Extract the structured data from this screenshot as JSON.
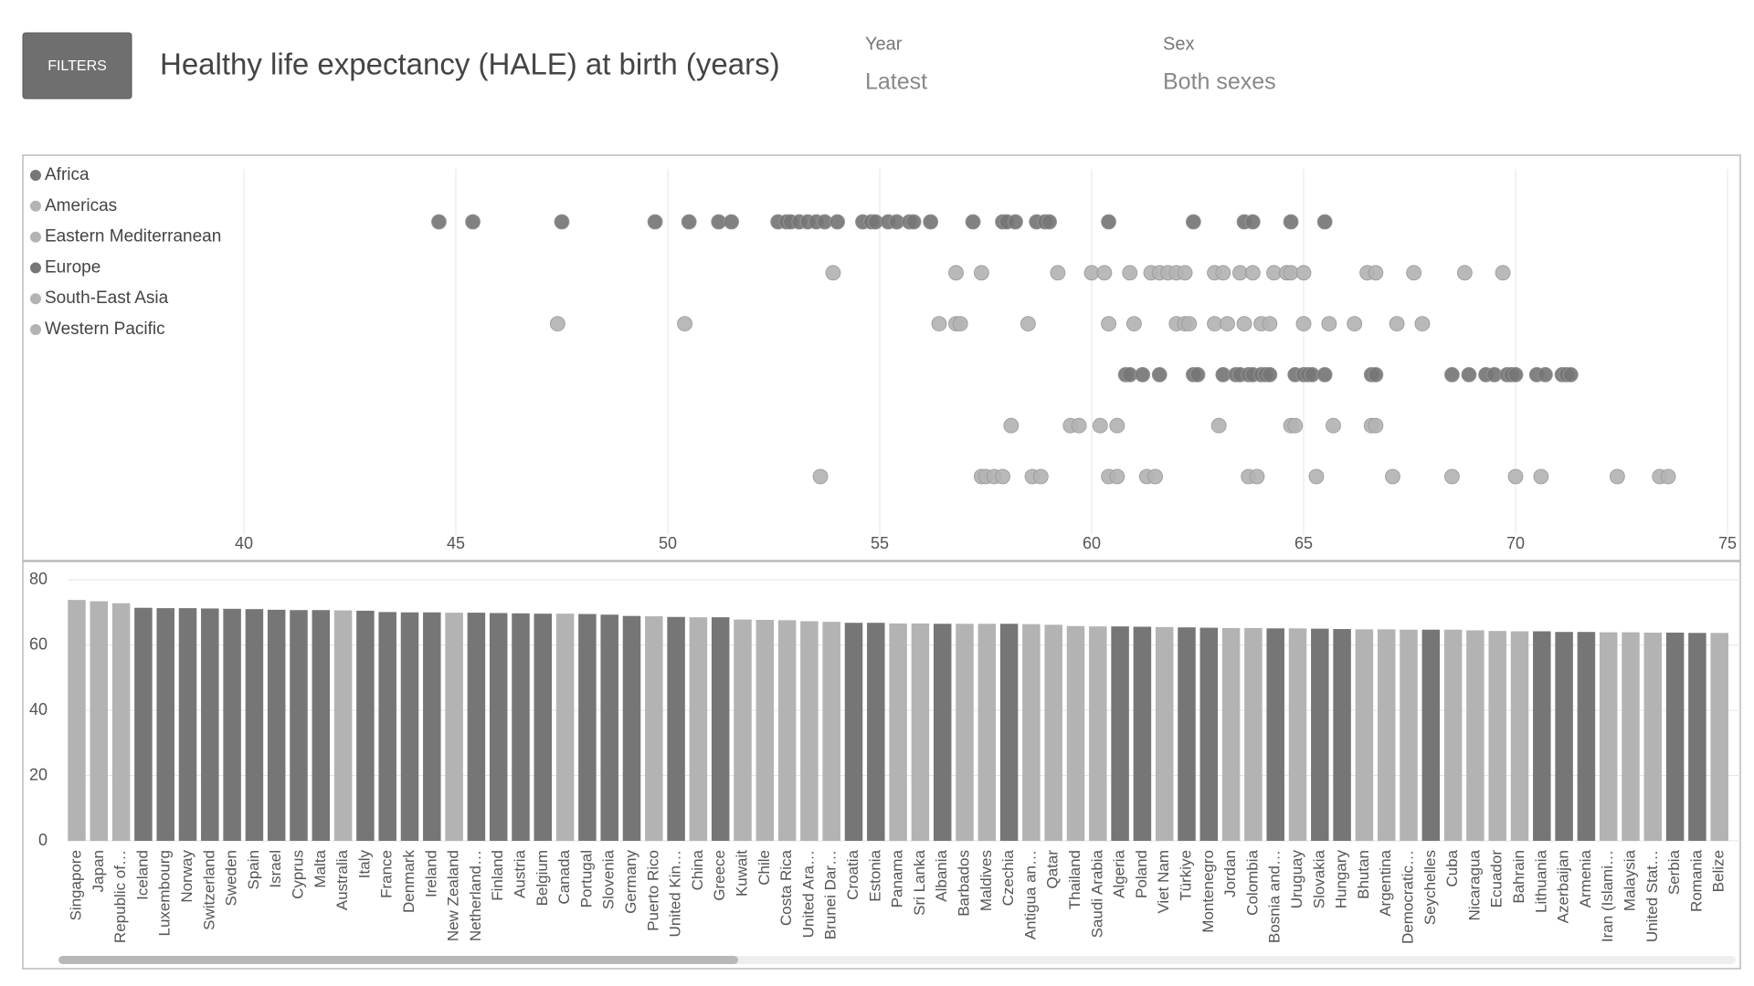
{
  "header": {
    "button": "FILTERS",
    "title": "Healthy life expectancy (HALE) at birth (years)",
    "filters": [
      {
        "label": "Year",
        "value": "Latest"
      },
      {
        "label": "Sex",
        "value": "Both sexes"
      }
    ]
  },
  "chart_data": [
    {
      "type": "strip",
      "xlim": [
        40,
        75
      ],
      "xticks": [
        40,
        45,
        50,
        55,
        60,
        65,
        70,
        75
      ],
      "grid": true,
      "legend": "left",
      "series": [
        {
          "name": "Africa",
          "color": "#767676",
          "values": [
            44.6,
            45.4,
            47.5,
            49.7,
            50.5,
            51.2,
            51.5,
            52.6,
            52.8,
            52.9,
            53.1,
            53.3,
            53.5,
            53.7,
            54.0,
            54.6,
            54.8,
            54.9,
            55.2,
            55.4,
            55.7,
            55.8,
            56.2,
            57.2,
            57.9,
            58.0,
            58.2,
            58.7,
            58.9,
            59.0,
            60.4,
            62.4,
            63.6,
            63.8,
            64.7,
            65.5
          ]
        },
        {
          "name": "Americas",
          "color": "#b3b3b3",
          "values": [
            53.9,
            56.8,
            57.4,
            59.2,
            60.0,
            60.3,
            60.9,
            61.4,
            61.6,
            61.8,
            62.0,
            62.2,
            62.9,
            63.1,
            63.5,
            63.8,
            64.3,
            64.6,
            64.7,
            65.0,
            66.5,
            66.7,
            67.6,
            68.8,
            69.7
          ]
        },
        {
          "name": "Eastern Mediterranean",
          "color": "#b3b3b3",
          "values": [
            47.4,
            50.4,
            56.4,
            56.8,
            56.9,
            58.5,
            60.4,
            61.0,
            62.0,
            62.2,
            62.3,
            62.9,
            63.2,
            63.6,
            64.0,
            64.2,
            65.0,
            65.6,
            66.2,
            67.2,
            67.8
          ]
        },
        {
          "name": "Europe",
          "color": "#767676",
          "values": [
            60.8,
            60.9,
            61.2,
            61.6,
            62.4,
            62.5,
            63.1,
            63.4,
            63.5,
            63.7,
            63.8,
            64.0,
            64.1,
            64.2,
            64.8,
            65.0,
            65.1,
            65.2,
            65.5,
            66.6,
            66.7,
            68.5,
            68.9,
            69.3,
            69.5,
            69.8,
            69.9,
            70.0,
            70.5,
            70.7,
            71.1,
            71.2,
            71.3
          ]
        },
        {
          "name": "South-East Asia",
          "color": "#b3b3b3",
          "values": [
            58.1,
            59.5,
            59.7,
            60.2,
            60.6,
            63.0,
            64.7,
            64.8,
            65.7,
            66.6,
            66.7
          ]
        },
        {
          "name": "Western Pacific",
          "color": "#b3b3b3",
          "values": [
            53.6,
            57.4,
            57.5,
            57.7,
            57.9,
            58.6,
            58.8,
            60.4,
            60.6,
            61.3,
            61.5,
            63.7,
            63.9,
            65.3,
            67.1,
            68.5,
            70.0,
            70.6,
            72.4,
            73.4,
            73.6
          ]
        }
      ]
    },
    {
      "type": "bar",
      "ylim": [
        0,
        80
      ],
      "yticks": [
        0,
        20,
        40,
        60,
        80
      ],
      "grid": true,
      "categories": [
        "Singapore",
        "Japan",
        "Republic of…",
        "Iceland",
        "Luxembourg",
        "Norway",
        "Switzerland",
        "Sweden",
        "Spain",
        "Israel",
        "Cyprus",
        "Malta",
        "Australia",
        "Italy",
        "France",
        "Denmark",
        "Ireland",
        "New Zealand",
        "Netherland…",
        "Finland",
        "Austria",
        "Belgium",
        "Canada",
        "Portugal",
        "Slovenia",
        "Germany",
        "Puerto Rico",
        "United Kin…",
        "China",
        "Greece",
        "Kuwait",
        "Chile",
        "Costa Rica",
        "United Ara…",
        "Brunei Dar…",
        "Croatia",
        "Estonia",
        "Panama",
        "Sri Lanka",
        "Albania",
        "Barbados",
        "Maldives",
        "Czechia",
        "Antigua an…",
        "Qatar",
        "Thailand",
        "Saudi Arabia",
        "Algeria",
        "Poland",
        "Viet Nam",
        "Türkiye",
        "Montenegro",
        "Jordan",
        "Colombia",
        "Bosnia and…",
        "Uruguay",
        "Slovakia",
        "Hungary",
        "Bhutan",
        "Argentina",
        "Democratic…",
        "Seychelles",
        "Cuba",
        "Nicaragua",
        "Ecuador",
        "Bahrain",
        "Lithuania",
        "Azerbaijan",
        "Armenia",
        "Iran (Islami…",
        "Malaysia",
        "United Stat…",
        "Serbia",
        "Romania",
        "Belize"
      ],
      "values": [
        73.8,
        73.4,
        72.8,
        71.4,
        71.3,
        71.3,
        71.2,
        71.1,
        71.0,
        70.8,
        70.7,
        70.7,
        70.6,
        70.5,
        70.1,
        70.0,
        70.0,
        69.9,
        69.9,
        69.8,
        69.7,
        69.6,
        69.6,
        69.5,
        69.3,
        68.9,
        68.8,
        68.6,
        68.5,
        68.5,
        67.8,
        67.7,
        67.6,
        67.3,
        67.1,
        66.8,
        66.8,
        66.6,
        66.6,
        66.5,
        66.5,
        66.5,
        66.5,
        66.4,
        66.2,
        65.8,
        65.7,
        65.7,
        65.6,
        65.5,
        65.4,
        65.3,
        65.2,
        65.2,
        65.1,
        65.1,
        65.0,
        64.9,
        64.8,
        64.8,
        64.7,
        64.7,
        64.7,
        64.5,
        64.3,
        64.2,
        64.2,
        64.0,
        64.0,
        63.9,
        63.9,
        63.8,
        63.8,
        63.7,
        63.7
      ],
      "colors": [
        "#b3b3b3",
        "#b3b3b3",
        "#b3b3b3",
        "#767676",
        "#767676",
        "#767676",
        "#767676",
        "#767676",
        "#767676",
        "#767676",
        "#767676",
        "#767676",
        "#b3b3b3",
        "#767676",
        "#767676",
        "#767676",
        "#767676",
        "#b3b3b3",
        "#767676",
        "#767676",
        "#767676",
        "#767676",
        "#b3b3b3",
        "#767676",
        "#767676",
        "#767676",
        "#b3b3b3",
        "#767676",
        "#b3b3b3",
        "#767676",
        "#b3b3b3",
        "#b3b3b3",
        "#b3b3b3",
        "#b3b3b3",
        "#b3b3b3",
        "#767676",
        "#767676",
        "#b3b3b3",
        "#b3b3b3",
        "#767676",
        "#b3b3b3",
        "#b3b3b3",
        "#767676",
        "#b3b3b3",
        "#b3b3b3",
        "#b3b3b3",
        "#b3b3b3",
        "#767676",
        "#767676",
        "#b3b3b3",
        "#767676",
        "#767676",
        "#b3b3b3",
        "#b3b3b3",
        "#767676",
        "#b3b3b3",
        "#767676",
        "#767676",
        "#b3b3b3",
        "#b3b3b3",
        "#b3b3b3",
        "#767676",
        "#b3b3b3",
        "#b3b3b3",
        "#b3b3b3",
        "#b3b3b3",
        "#767676",
        "#767676",
        "#767676",
        "#b3b3b3",
        "#b3b3b3",
        "#b3b3b3",
        "#767676",
        "#767676",
        "#b3b3b3"
      ]
    }
  ]
}
